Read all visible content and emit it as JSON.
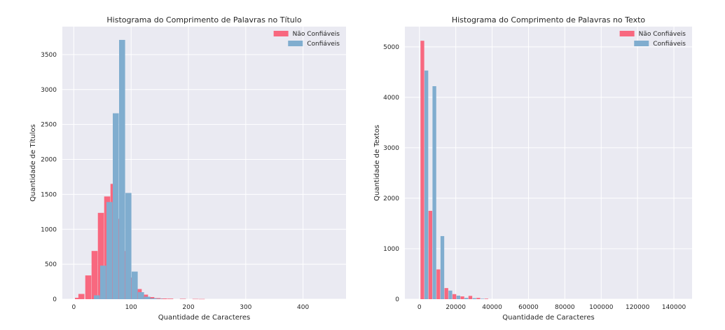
{
  "colors": {
    "background": "#ffffff",
    "plot_bg": "#eaeaf2",
    "grid": "#ffffff",
    "untrusted": "#f8687f",
    "trusted": "#80adcf"
  },
  "chart_data": [
    {
      "type": "bar",
      "title": "Histograma do Comprimento de Palavras no Título",
      "xlabel": "Quantidade de Caracteres",
      "ylabel": "Quantidade de Títulos",
      "xlim": [
        -20,
        475
      ],
      "ylim": [
        0,
        3900
      ],
      "xticks": [
        0,
        100,
        200,
        300,
        400
      ],
      "xtick_labels": [
        "0",
        "100",
        "200",
        "300",
        "400"
      ],
      "yticks": [
        0,
        500,
        1000,
        1500,
        2000,
        2500,
        3000,
        3500
      ],
      "ytick_labels": [
        "0",
        "500",
        "1000",
        "1500",
        "2000",
        "2500",
        "3000",
        "3500"
      ],
      "bin_width": 11,
      "grid": true,
      "legend_position": "top-right",
      "series": [
        {
          "name": "Não Confiáveis",
          "bins": [
            {
              "x": 2,
              "y": 20
            },
            {
              "x": 8,
              "y": 75
            },
            {
              "x": 20,
              "y": 340
            },
            {
              "x": 31,
              "y": 690
            },
            {
              "x": 42,
              "y": 1235
            },
            {
              "x": 53,
              "y": 1470
            },
            {
              "x": 64,
              "y": 1650
            },
            {
              "x": 75,
              "y": 1150
            },
            {
              "x": 86,
              "y": 690
            },
            {
              "x": 97,
              "y": 310
            },
            {
              "x": 108,
              "y": 145
            },
            {
              "x": 119,
              "y": 65
            },
            {
              "x": 130,
              "y": 30
            },
            {
              "x": 141,
              "y": 15
            },
            {
              "x": 152,
              "y": 10
            },
            {
              "x": 163,
              "y": 8
            },
            {
              "x": 185,
              "y": 5
            },
            {
              "x": 207,
              "y": 4
            },
            {
              "x": 218,
              "y": 3
            }
          ]
        },
        {
          "name": "Confiáveis",
          "bins": [
            {
              "x": 35,
              "y": 55
            },
            {
              "x": 46,
              "y": 480
            },
            {
              "x": 57,
              "y": 1390
            },
            {
              "x": 68,
              "y": 2660
            },
            {
              "x": 79,
              "y": 3710
            },
            {
              "x": 90,
              "y": 1520
            },
            {
              "x": 101,
              "y": 395
            },
            {
              "x": 112,
              "y": 100
            },
            {
              "x": 123,
              "y": 35
            },
            {
              "x": 134,
              "y": 12
            },
            {
              "x": 145,
              "y": 5
            }
          ]
        }
      ]
    },
    {
      "type": "bar",
      "title": "Histograma do Comprimento de Palavras no Texto",
      "xlabel": "Quantidade de Caracteres",
      "ylabel": "Quantidade de Textos",
      "xlim": [
        -8000,
        150000
      ],
      "ylim": [
        0,
        5400
      ],
      "xticks": [
        0,
        20000,
        40000,
        60000,
        80000,
        100000,
        120000,
        140000
      ],
      "xtick_labels": [
        "0",
        "20000",
        "40000",
        "60000",
        "80000",
        "100000",
        "120000",
        "140000"
      ],
      "yticks": [
        0,
        1000,
        2000,
        3000,
        4000,
        5000
      ],
      "ytick_labels": [
        "0",
        "1000",
        "2000",
        "3000",
        "4000",
        "5000"
      ],
      "bin_width": 2200,
      "grid": true,
      "legend_position": "top-right",
      "series": [
        {
          "name": "Não Confiáveis",
          "bins": [
            {
              "x": 600,
              "y": 5120
            },
            {
              "x": 5000,
              "y": 1750
            },
            {
              "x": 9400,
              "y": 590
            },
            {
              "x": 13800,
              "y": 220
            },
            {
              "x": 18200,
              "y": 100
            },
            {
              "x": 22600,
              "y": 55
            },
            {
              "x": 27000,
              "y": 65
            },
            {
              "x": 31400,
              "y": 25
            },
            {
              "x": 35800,
              "y": 10
            }
          ]
        },
        {
          "name": "Confiáveis",
          "bins": [
            {
              "x": 2800,
              "y": 4530
            },
            {
              "x": 7200,
              "y": 4220
            },
            {
              "x": 11600,
              "y": 1250
            },
            {
              "x": 16000,
              "y": 170
            },
            {
              "x": 20400,
              "y": 70
            },
            {
              "x": 24800,
              "y": 25
            },
            {
              "x": 29200,
              "y": 20
            },
            {
              "x": 33600,
              "y": 8
            }
          ]
        }
      ]
    }
  ]
}
